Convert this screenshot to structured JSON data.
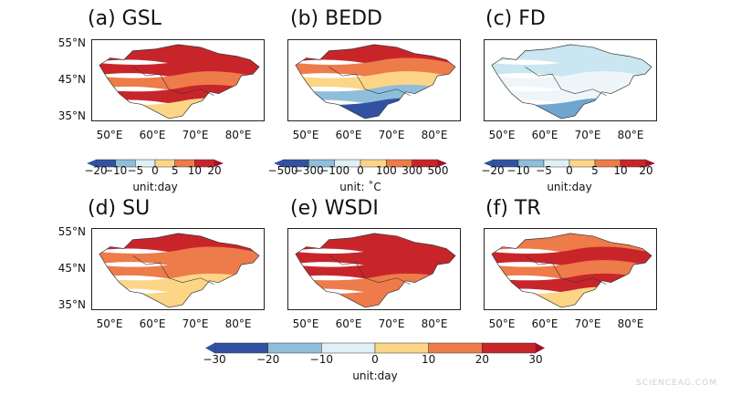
{
  "panels": [
    {
      "label": "(a) GSL",
      "palette": [
        "#c8252b",
        "#c8252b",
        "#ee7b4a",
        "#c8252b",
        "#fdd586"
      ]
    },
    {
      "label": "(b) BEDD",
      "palette": [
        "#c8252b",
        "#ee7b4a",
        "#fdd586",
        "#8fbedb",
        "#3152a3"
      ]
    },
    {
      "label": "(c) FD",
      "palette": [
        "#c9e6f1",
        "#c9e6f1",
        "#eef6fa",
        "#eef6fa",
        "#6fa5cf"
      ]
    },
    {
      "label": "(d) SU",
      "palette": [
        "#c8252b",
        "#ee7b4a",
        "#ee7b4a",
        "#fdd586",
        "#fdd586"
      ]
    },
    {
      "label": "(e) WSDI",
      "palette": [
        "#c8252b",
        "#c8252b",
        "#c8252b",
        "#ee7b4a",
        "#ee7b4a"
      ]
    },
    {
      "label": "(f) TR",
      "palette": [
        "#ee7b4a",
        "#c8252b",
        "#ee7b4a",
        "#c8252b",
        "#fdd586"
      ]
    }
  ],
  "lat_ticks": [
    "55°N",
    "45°N",
    "35°N"
  ],
  "lon_ticks": [
    "50°E",
    "60°E",
    "70°E",
    "80°E"
  ],
  "colorbars": [
    {
      "ticks": [
        "−20",
        "−10",
        "−5",
        "0",
        "5",
        "10",
        "20"
      ],
      "unit": "unit:day"
    },
    {
      "ticks": [
        "−500",
        "−300",
        "−100",
        "0",
        "100",
        "300",
        "500"
      ],
      "unit": "unit: ˚C"
    },
    {
      "ticks": [
        "−20",
        "−10",
        "−5",
        "0",
        "5",
        "10",
        "20"
      ],
      "unit": "unit:day"
    },
    {
      "ticks": [
        "−30",
        "−20",
        "−10",
        "0",
        "10",
        "20",
        "30"
      ],
      "unit": "unit:day"
    }
  ],
  "colors": [
    "#3152a3",
    "#8fbedb",
    "#dff0f7",
    "#fdd586",
    "#ee7b4a",
    "#c8252b"
  ],
  "watermark": "SCIENCEAG.COM"
}
